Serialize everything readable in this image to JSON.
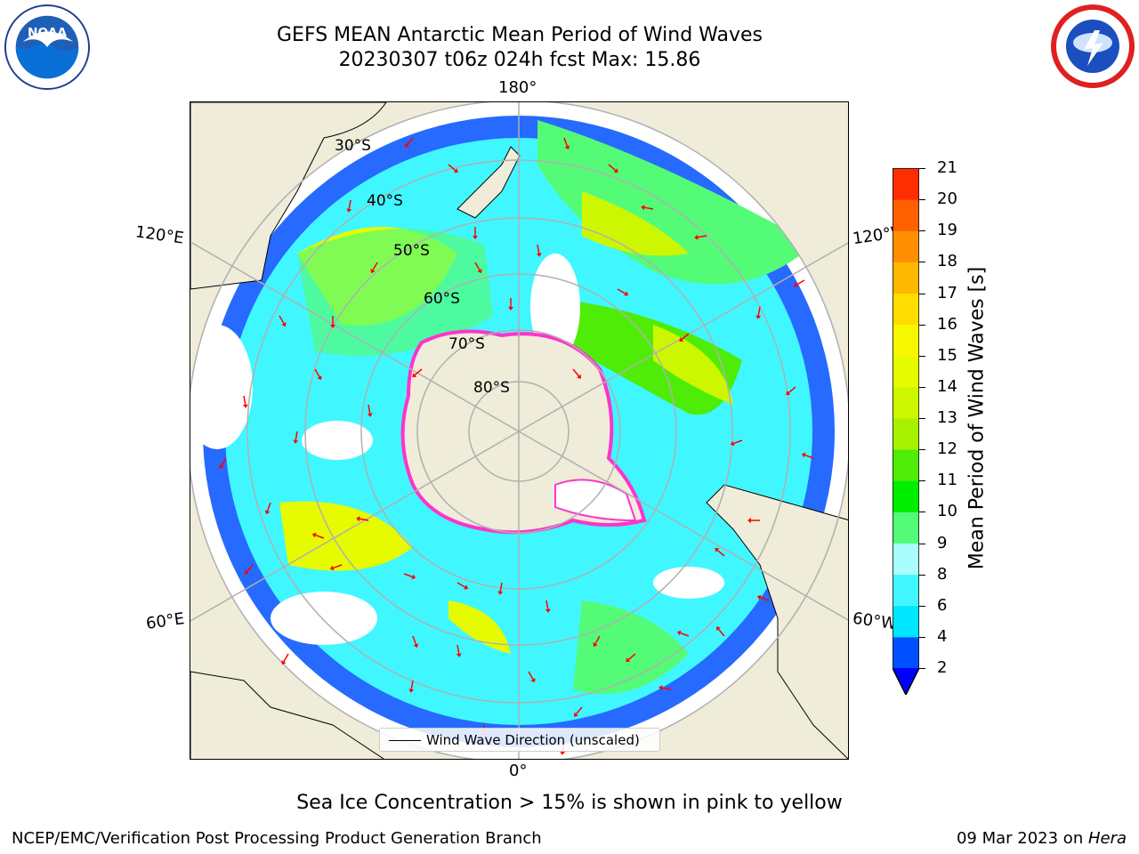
{
  "header": {
    "title_line1": "GEFS MEAN Antarctic Mean Period of Wind Waves",
    "title_line2": "20230307 t06z 024h fcst   Max: 15.86"
  },
  "map": {
    "projection": "south-polar stereographic",
    "lon_labels": {
      "top": "180°",
      "bottom": "0°",
      "left_upper": "120°E",
      "left_lower": "60°E",
      "right_upper": "120°W",
      "right_lower": "60°W"
    },
    "lat_labels": [
      "30°S",
      "40°S",
      "50°S",
      "60°S",
      "70°S",
      "80°S"
    ],
    "legend_label": "Wind Wave Direction (unscaled)",
    "colors": {
      "land": "#efecd9",
      "ocean_missing": "#ffffff",
      "arrow": "#ff0000",
      "ice": "#ff33cc",
      "grid": "#b0b0b0"
    }
  },
  "colorbar": {
    "label": "Mean Period of Wind Waves [s]",
    "ticks": [
      "2",
      "4",
      "6",
      "8",
      "9",
      "10",
      "11",
      "12",
      "13",
      "14",
      "15",
      "16",
      "17",
      "18",
      "19",
      "20",
      "21"
    ],
    "level_colors": [
      "#0050ff",
      "#00e6ff",
      "#41f7ff",
      "#a9fdfd",
      "#54fb77",
      "#00ee00",
      "#4fec07",
      "#a6f000",
      "#cdf700",
      "#e6fb00",
      "#f7f700",
      "#ffdd00",
      "#ffb800",
      "#ff8f00",
      "#ff6000",
      "#ff2e00"
    ],
    "underflow_color": "#0000ff"
  },
  "notes": {
    "ice": "Sea Ice Concentration > 15% is shown in pink to yellow"
  },
  "footer": {
    "left": "NCEP/EMC/Verification Post Processing Product Generation Branch",
    "date": "09 Mar 2023 on ",
    "host": "Hera"
  },
  "logos": {
    "noaa_text": "NOAA"
  }
}
